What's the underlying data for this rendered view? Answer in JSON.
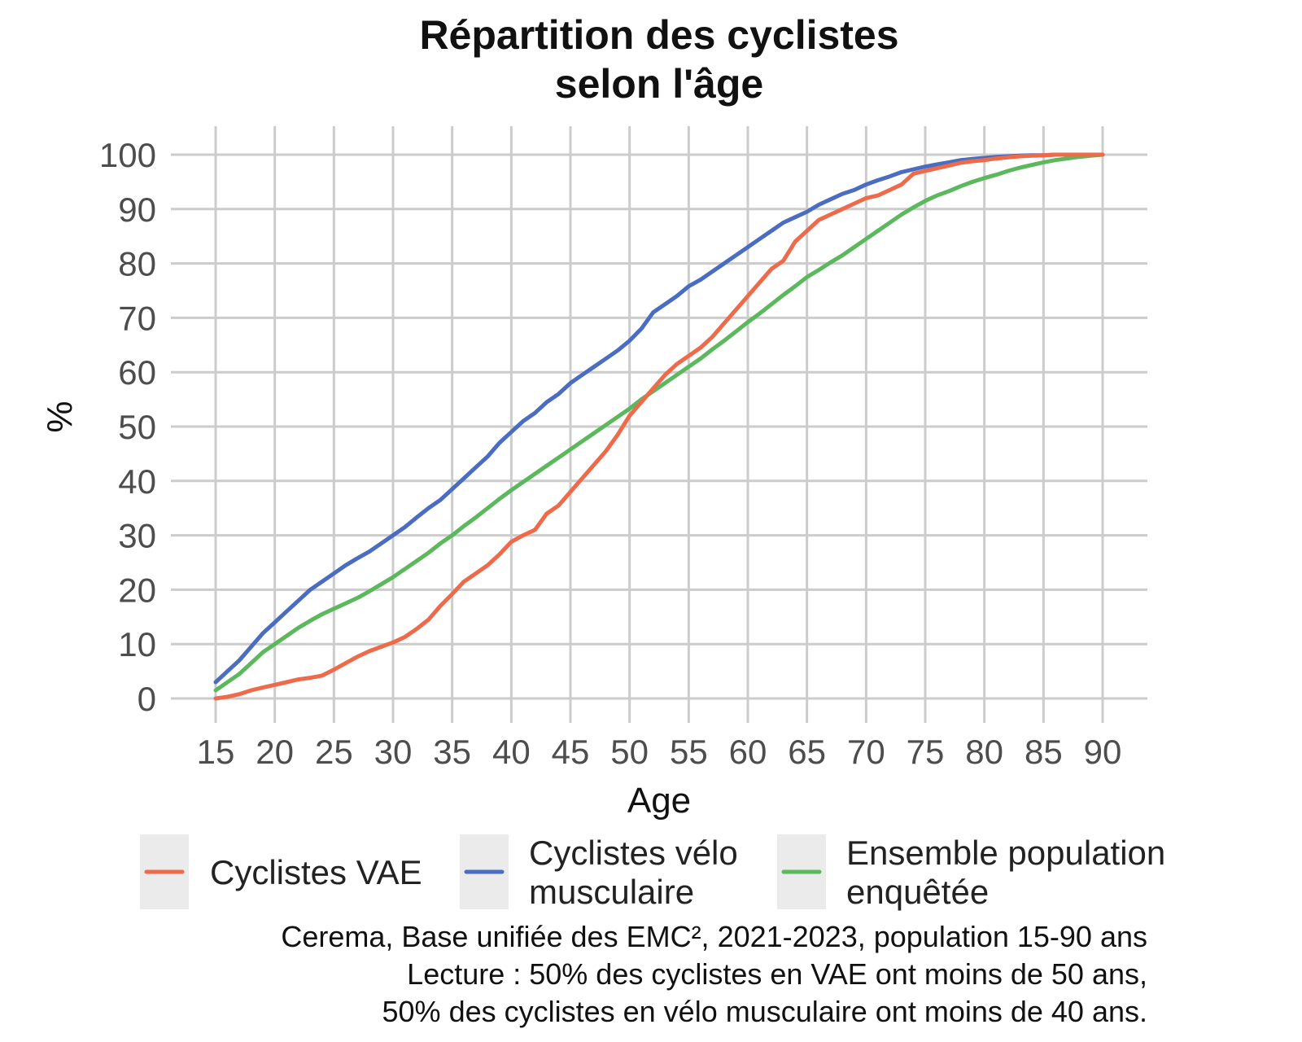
{
  "chart_data": {
    "type": "line",
    "title_lines": [
      "Répartition des cyclistes",
      "selon l'âge"
    ],
    "xlabel": "Age",
    "ylabel": "%",
    "xlim": [
      15,
      90
    ],
    "ylim": [
      0,
      100
    ],
    "xticks": [
      "15",
      "20",
      "25",
      "30",
      "35",
      "40",
      "45",
      "50",
      "55",
      "60",
      "65",
      "70",
      "75",
      "80",
      "85",
      "90"
    ],
    "yticks": [
      "0",
      "10",
      "20",
      "30",
      "40",
      "50",
      "60",
      "70",
      "80",
      "90",
      "100"
    ],
    "grid": true,
    "legend_position": "bottom",
    "x": [
      15,
      16,
      17,
      18,
      19,
      20,
      21,
      22,
      23,
      24,
      25,
      26,
      27,
      28,
      29,
      30,
      31,
      32,
      33,
      34,
      35,
      36,
      37,
      38,
      39,
      40,
      41,
      42,
      43,
      44,
      45,
      46,
      47,
      48,
      49,
      50,
      51,
      52,
      53,
      54,
      55,
      56,
      57,
      58,
      59,
      60,
      61,
      62,
      63,
      64,
      65,
      66,
      67,
      68,
      69,
      70,
      71,
      72,
      73,
      74,
      75,
      76,
      77,
      78,
      79,
      80,
      81,
      82,
      83,
      84,
      85,
      86,
      87,
      88,
      89,
      90
    ],
    "series": [
      {
        "name": "Cyclistes VAE",
        "color": "#ED6B4B",
        "values": [
          0,
          0.3,
          0.8,
          1.5,
          2,
          2.5,
          3,
          3.5,
          3.8,
          4.2,
          5.3,
          6.5,
          7.7,
          8.7,
          9.5,
          10.3,
          11.3,
          12.8,
          14.5,
          17,
          19.2,
          21.5,
          23,
          24.5,
          26.5,
          28.8,
          30,
          31,
          34,
          35.5,
          38,
          40.5,
          43,
          45.5,
          48.5,
          52,
          54.5,
          57,
          59.5,
          61.5,
          63,
          64.5,
          66.5,
          69,
          71.5,
          74,
          76.5,
          79,
          80.5,
          84,
          86,
          88,
          89,
          90,
          91,
          92,
          92.5,
          93.5,
          94.5,
          96.5,
          97,
          97.5,
          98,
          98.5,
          98.8,
          99,
          99.3,
          99.5,
          99.7,
          99.8,
          99.9,
          100,
          100,
          100,
          100,
          100
        ]
      },
      {
        "name": "Cyclistes vélo musculaire",
        "color": "#4A6CC1",
        "values": [
          3,
          5,
          7,
          9.5,
          12,
          14,
          16,
          18,
          20,
          21.5,
          23,
          24.5,
          25.8,
          27,
          28.5,
          30,
          31.5,
          33.3,
          35,
          36.5,
          38.5,
          40.5,
          42.5,
          44.5,
          47,
          49,
          51,
          52.5,
          54.5,
          56,
          58,
          59.5,
          61,
          62.5,
          64,
          65.8,
          68,
          71,
          72.5,
          74,
          75.8,
          77,
          78.5,
          80,
          81.5,
          83,
          84.5,
          86,
          87.5,
          88.5,
          89.5,
          90.8,
          91.8,
          92.8,
          93.5,
          94.5,
          95.3,
          96,
          96.8,
          97.3,
          97.8,
          98.2,
          98.6,
          99,
          99.2,
          99.4,
          99.6,
          99.7,
          99.8,
          99.9,
          99.9,
          100,
          100,
          100,
          100,
          100
        ]
      },
      {
        "name": "Ensemble population enquêtée",
        "color": "#5BB85C",
        "values": [
          1.5,
          3,
          4.5,
          6.5,
          8.5,
          10,
          11.5,
          13,
          14.3,
          15.5,
          16.5,
          17.5,
          18.5,
          19.7,
          21,
          22.3,
          23.8,
          25.3,
          26.8,
          28.5,
          30,
          31.7,
          33.3,
          35,
          36.7,
          38.3,
          39.8,
          41.3,
          42.8,
          44.3,
          45.8,
          47.3,
          48.8,
          50.3,
          51.8,
          53.3,
          55,
          56.5,
          58,
          59.5,
          61,
          62.5,
          64.2,
          65.8,
          67.5,
          69.2,
          70.8,
          72.5,
          74.2,
          75.8,
          77.5,
          78.8,
          80.2,
          81.5,
          83,
          84.5,
          86,
          87.5,
          89,
          90.3,
          91.5,
          92.5,
          93.3,
          94.2,
          95,
          95.7,
          96.3,
          97,
          97.6,
          98.1,
          98.6,
          99,
          99.3,
          99.6,
          99.8,
          100
        ]
      }
    ],
    "legend_lines": [
      [
        "Cyclistes VAE"
      ],
      [
        "Cyclistes vélo",
        "musculaire"
      ],
      [
        "Ensemble population",
        "enquêtée"
      ]
    ],
    "caption_lines": [
      "Cerema, Base unifiée des EMC², 2021-2023, population 15-90 ans",
      "Lecture : 50% des cyclistes en VAE ont moins de 50 ans,",
      "50% des cyclistes en vélo musculaire ont moins de 40 ans."
    ]
  }
}
